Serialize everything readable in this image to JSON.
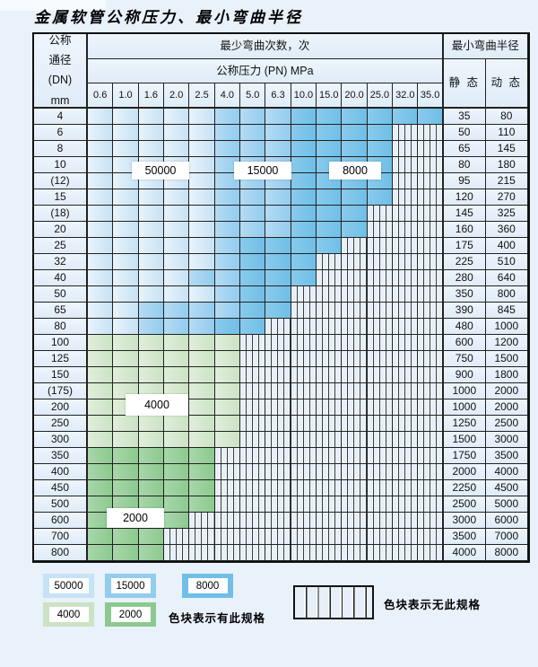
{
  "title": "金属软管公称压力、最小弯曲半径",
  "header": {
    "dn_lines": [
      "公称",
      "通径",
      "(DN)",
      "mm"
    ],
    "bend_cycles_label": "最少弯曲次数，次",
    "pressure_label": "公称压力 (PN) MPa",
    "pressure_cols": [
      "0.6",
      "1.0",
      "1.6",
      "2.0",
      "2.5",
      "4.0",
      "5.0",
      "6.3",
      "10.0",
      "15.0",
      "20.0",
      "25.0",
      "32.0",
      "35.0"
    ],
    "radius_label": "最小弯曲半径",
    "static_label": "静 态",
    "dynamic_label": "动 态"
  },
  "cell_codes": {
    "L": "bend-cycles-50000",
    "M": "bend-cycles-15000",
    "D": "bend-cycles-8000",
    "G": "bend-cycles-4000",
    "g": "bend-cycles-2000",
    "X": "no-specification-hatched"
  },
  "rows": [
    {
      "dn": "4",
      "cells": "LLLLLMMMDDDDDD",
      "static": "35",
      "dynamic": "80"
    },
    {
      "dn": "6",
      "cells": "LLLLLMMMDDDDXX",
      "static": "50",
      "dynamic": "110"
    },
    {
      "dn": "8",
      "cells": "LLLLLMMMDDDDXX",
      "static": "65",
      "dynamic": "145"
    },
    {
      "dn": "10",
      "cells": "LLLLLMMMDDDDXX",
      "static": "80",
      "dynamic": "180"
    },
    {
      "dn": "(12)",
      "cells": "LLLLLMMMDDDDXX",
      "static": "95",
      "dynamic": "215"
    },
    {
      "dn": "15",
      "cells": "LLLLLMMMDDDDXX",
      "static": "120",
      "dynamic": "270"
    },
    {
      "dn": "(18)",
      "cells": "LLLLLMMMDDDXXX",
      "static": "145",
      "dynamic": "325"
    },
    {
      "dn": "20",
      "cells": "LLLLLMMMDDDXXX",
      "static": "160",
      "dynamic": "360"
    },
    {
      "dn": "25",
      "cells": "LLLLLMDDDDXXXX",
      "static": "175",
      "dynamic": "400"
    },
    {
      "dn": "32",
      "cells": "LLLLLMDDDXXXXX",
      "static": "225",
      "dynamic": "510"
    },
    {
      "dn": "40",
      "cells": "LLLLMMDDDXXXXX",
      "static": "280",
      "dynamic": "640"
    },
    {
      "dn": "50",
      "cells": "LLLLLMDDXXXXXX",
      "static": "350",
      "dynamic": "800"
    },
    {
      "dn": "65",
      "cells": "LLMMMMDDXXXXXX",
      "static": "390",
      "dynamic": "845"
    },
    {
      "dn": "80",
      "cells": "LLMMMDDXXXXXXX",
      "static": "480",
      "dynamic": "1000"
    },
    {
      "dn": "100",
      "cells": "GGGGGGXXXXXXXX",
      "static": "600",
      "dynamic": "1200"
    },
    {
      "dn": "125",
      "cells": "GGGGGGXXXXXXXX",
      "static": "750",
      "dynamic": "1500"
    },
    {
      "dn": "150",
      "cells": "GGGGGGXXXXXXXX",
      "static": "900",
      "dynamic": "1800"
    },
    {
      "dn": "(175)",
      "cells": "GGGGGGXXXXXXXX",
      "static": "1000",
      "dynamic": "2000"
    },
    {
      "dn": "200",
      "cells": "GGGGGGXXXXXXXX",
      "static": "1000",
      "dynamic": "2000"
    },
    {
      "dn": "250",
      "cells": "GGGGGGXXXXXXXX",
      "static": "1250",
      "dynamic": "2500"
    },
    {
      "dn": "300",
      "cells": "GGGGGGXXXXXXXX",
      "static": "1500",
      "dynamic": "3000"
    },
    {
      "dn": "350",
      "cells": "gggggXXXXXXXXX",
      "static": "1750",
      "dynamic": "3500"
    },
    {
      "dn": "400",
      "cells": "gggggXXXXXXXXX",
      "static": "2000",
      "dynamic": "4000"
    },
    {
      "dn": "450",
      "cells": "gggggXXXXXXXXX",
      "static": "2250",
      "dynamic": "4500"
    },
    {
      "dn": "500",
      "cells": "gggggXXXXXXXXX",
      "static": "2500",
      "dynamic": "5000"
    },
    {
      "dn": "600",
      "cells": "ggggXXXXXXXXXX",
      "static": "3000",
      "dynamic": "6000"
    },
    {
      "dn": "700",
      "cells": "gggXXXXXXXXXXX",
      "static": "3500",
      "dynamic": "7000"
    },
    {
      "dn": "800",
      "cells": "gggXXXXXXXXXXX",
      "static": "4000",
      "dynamic": "8000"
    }
  ],
  "overlays": {
    "o1": "50000",
    "o2": "15000",
    "o3": "8000",
    "o4": "4000",
    "o5": "2000"
  },
  "legend": {
    "v1": "50000",
    "v2": "15000",
    "v3": "8000",
    "v4": "4000",
    "v5": "2000",
    "has_spec_note": "色块表示有此规格",
    "no_spec_note": "色块表示无此规格"
  },
  "colors": {
    "page_bg": "#e9f1fa",
    "label_bg_a": "#eef5fc",
    "label_bg_b": "#dfecf8",
    "blue_light_a": "#e8f3fb",
    "blue_light_b": "#c6e2f5",
    "blue_mid_a": "#b5dbf3",
    "blue_mid_b": "#92ccee",
    "blue_dark_a": "#8acaec",
    "blue_dark_b": "#6fbfe8",
    "green_light_a": "#e0eeda",
    "green_light_b": "#cbe3c4",
    "green_mid_a": "#a8d7aa",
    "green_mid_b": "#8cc98f",
    "hatch_bg": "#e7f0f9"
  }
}
